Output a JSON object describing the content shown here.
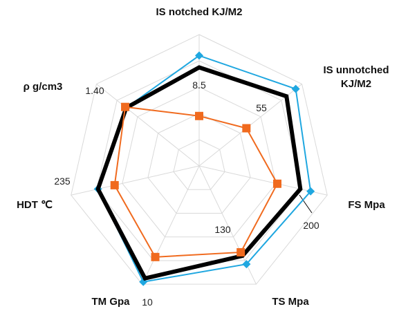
{
  "chart_data": {
    "type": "radar",
    "categories": [
      "IS notched KJ/M2",
      "IS unnotched KJ/M2",
      "FS Mpa",
      "TS Mpa",
      "TM Gpa",
      "HDT ℃",
      "ρ g/cm3"
    ],
    "series": [
      {
        "color": "#1fa7e0",
        "marker": "diamond",
        "line_width": 2,
        "values": [
          84,
          94,
          87,
          83,
          98,
          79,
          71
        ]
      },
      {
        "color": "#000000",
        "marker": "none",
        "line_width": 6,
        "values": [
          75,
          85,
          79,
          76,
          95,
          79,
          71
        ]
      },
      {
        "color": "#f06a1e",
        "marker": "square",
        "line_width": 2,
        "values": [
          38,
          46,
          61,
          73,
          77,
          66,
          72
        ]
      }
    ],
    "rlim": [
      0,
      100
    ],
    "rticks": [
      20,
      40,
      60,
      80,
      100
    ],
    "grid": true,
    "annotations": [
      "8.5",
      "55",
      "200",
      "130",
      "10",
      "235",
      "1.40"
    ]
  }
}
